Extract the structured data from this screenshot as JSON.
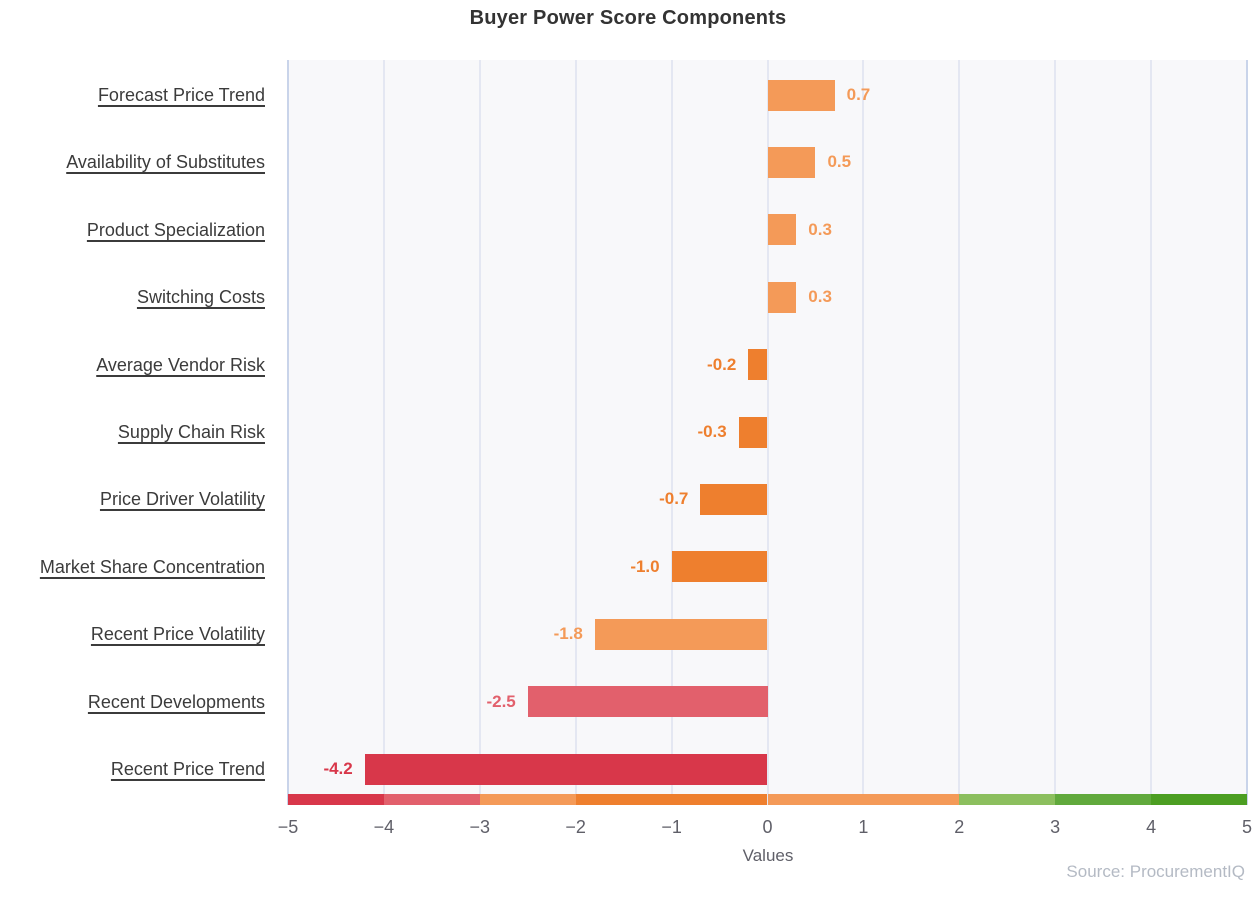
{
  "title": "Buyer Power Score Components",
  "source": "Source: ProcurementIQ",
  "colors": {
    "plot_bg": "#f8f8fa",
    "gridline": "#e4e7f2",
    "plot_border": "#c9d4ea",
    "title_text": "#333333",
    "category_text": "#3b3b3b",
    "tick_text": "#5f5f68",
    "source_text": "#b4bac4"
  },
  "chart_data": {
    "type": "bar",
    "orientation": "horizontal",
    "title": "Buyer Power Score Components",
    "xlabel": "Values",
    "ylabel": "",
    "xlim": [
      -5,
      5
    ],
    "grid": true,
    "legend": false,
    "categories": [
      "Forecast Price Trend",
      "Availability of Substitutes",
      "Product Specialization",
      "Switching Costs",
      "Average Vendor Risk",
      "Supply Chain Risk",
      "Price Driver Volatility",
      "Market Share Concentration",
      "Recent Price Volatility",
      "Recent Developments",
      "Recent Price Trend"
    ],
    "values": [
      0.7,
      0.5,
      0.3,
      0.3,
      -0.2,
      -0.3,
      -0.7,
      -1.0,
      -1.8,
      -2.5,
      -4.2
    ],
    "rows": [
      {
        "label": "Forecast Price Trend",
        "value": 0.7,
        "value_label": "0.7",
        "color": "#f49a58"
      },
      {
        "label": "Availability of Substitutes",
        "value": 0.5,
        "value_label": "0.5",
        "color": "#f49a58"
      },
      {
        "label": "Product Specialization",
        "value": 0.3,
        "value_label": "0.3",
        "color": "#f49a58"
      },
      {
        "label": "Switching Costs",
        "value": 0.3,
        "value_label": "0.3",
        "color": "#f49a58"
      },
      {
        "label": "Average Vendor Risk",
        "value": -0.2,
        "value_label": "-0.2",
        "color": "#ee7f2e"
      },
      {
        "label": "Supply Chain Risk",
        "value": -0.3,
        "value_label": "-0.3",
        "color": "#ee7f2e"
      },
      {
        "label": "Price Driver Volatility",
        "value": -0.7,
        "value_label": "-0.7",
        "color": "#ee7f2e"
      },
      {
        "label": "Market Share Concentration",
        "value": -1.0,
        "value_label": "-1.0",
        "color": "#ee7f2e"
      },
      {
        "label": "Recent Price Volatility",
        "value": -1.8,
        "value_label": "-1.8",
        "color": "#f49a58"
      },
      {
        "label": "Recent Developments",
        "value": -2.5,
        "value_label": "-2.5",
        "color": "#e2606c"
      },
      {
        "label": "Recent Price Trend",
        "value": -4.2,
        "value_label": "-4.2",
        "color": "#d8374a"
      }
    ],
    "ticks": [
      {
        "v": -5,
        "label": "−5"
      },
      {
        "v": -4,
        "label": "−4"
      },
      {
        "v": -3,
        "label": "−3"
      },
      {
        "v": -2,
        "label": "−2"
      },
      {
        "v": -1,
        "label": "−1"
      },
      {
        "v": 0,
        "label": "0"
      },
      {
        "v": 1,
        "label": "1"
      },
      {
        "v": 2,
        "label": "2"
      },
      {
        "v": 3,
        "label": "3"
      },
      {
        "v": 4,
        "label": "4"
      },
      {
        "v": 5,
        "label": "5"
      }
    ],
    "score_scale_strip": [
      {
        "from": -5,
        "to": -4,
        "color": "#d8374a"
      },
      {
        "from": -4,
        "to": -3,
        "color": "#e2606c"
      },
      {
        "from": -3,
        "to": -2,
        "color": "#f49a58"
      },
      {
        "from": -2,
        "to": 0,
        "color": "#ee7f2e"
      },
      {
        "from": 0,
        "to": 2,
        "color": "#f49a58"
      },
      {
        "from": 2,
        "to": 3,
        "color": "#8cbf5e"
      },
      {
        "from": 3,
        "to": 4,
        "color": "#61a93c"
      },
      {
        "from": 4,
        "to": 5,
        "color": "#4c9e22"
      }
    ]
  }
}
